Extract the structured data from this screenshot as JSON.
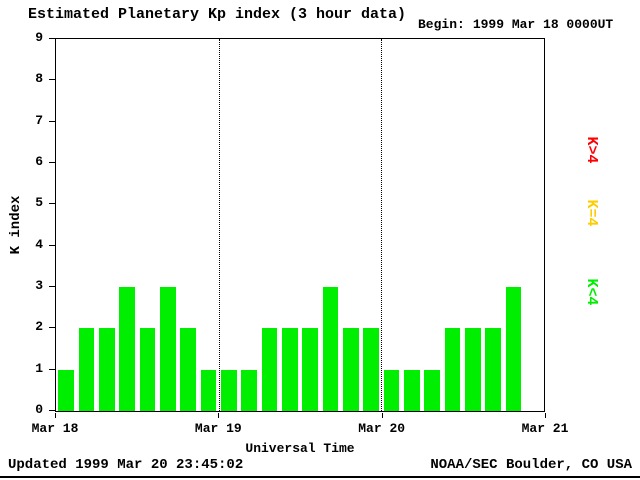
{
  "header": {
    "title": "Estimated Planetary Kp index (3 hour data)",
    "begin_label": "Begin:",
    "begin_value": "1999 Mar 18 0000UT"
  },
  "chart_data": {
    "type": "bar",
    "title": "Estimated Planetary Kp index (3 hour data)",
    "begin": "1999 Mar 18 0000UT",
    "xlabel": "Universal Time",
    "ylabel": "K index",
    "ylim": [
      0,
      9
    ],
    "yticks": [
      0,
      1,
      2,
      3,
      4,
      5,
      6,
      7,
      8,
      9
    ],
    "days": 3,
    "slots_per_day": 8,
    "hours_per_slot": 3,
    "x_tick_labels": [
      "Mar 18",
      "Mar 19",
      "Mar 20",
      "Mar 21"
    ],
    "grid": "none",
    "day_boundary_style": "dotted",
    "values": [
      1,
      2,
      2,
      3,
      2,
      3,
      2,
      1,
      1,
      1,
      2,
      2,
      2,
      3,
      2,
      2,
      1,
      1,
      1,
      2,
      2,
      2,
      3
    ],
    "color_rule": {
      "k_lt_4": "#00ee00",
      "k_eq_4": "#ffcc00",
      "k_gt_4": "#ff0000"
    }
  },
  "legend": {
    "items": [
      {
        "label": "K>4",
        "color": "#ff0000"
      },
      {
        "label": "K=4",
        "color": "#ffcc00"
      },
      {
        "label": "K<4",
        "color": "#00ee00"
      }
    ]
  },
  "footer": {
    "updated": "Updated 1999 Mar 20 23:45:02",
    "source": "NOAA/SEC Boulder, CO USA"
  }
}
